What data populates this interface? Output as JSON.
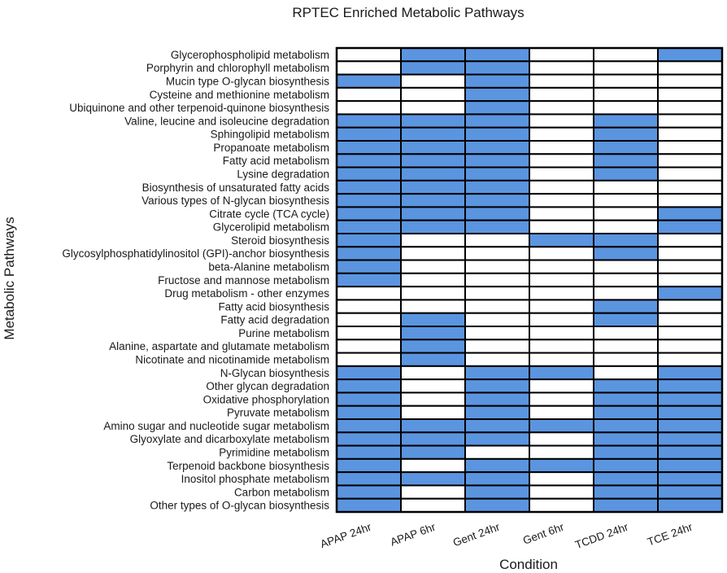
{
  "chart_data": {
    "type": "heatmap",
    "title": "RPTEC Enriched Metabolic Pathways",
    "xlabel": "Condition",
    "ylabel": "Metabolic Pathways",
    "colors": {
      "enriched": "#5b95e0",
      "not_enriched": "#ffffff",
      "border": "#000000"
    },
    "columns": [
      "APAP 24hr",
      "APAP 6hr",
      "Gent 24hr",
      "Gent 6hr",
      "TCDD 24hr",
      "TCE 24hr"
    ],
    "rows": [
      "Glycerophospholipid metabolism",
      "Porphyrin and chlorophyll metabolism",
      "Mucin type O-glycan biosynthesis",
      "Cysteine and methionine metabolism",
      "Ubiquinone and other terpenoid-quinone biosynthesis",
      "Valine, leucine and isoleucine degradation",
      "Sphingolipid metabolism",
      "Propanoate metabolism",
      "Fatty acid metabolism",
      "Lysine degradation",
      "Biosynthesis of unsaturated fatty acids",
      "Various types of N-glycan biosynthesis",
      "Citrate cycle (TCA cycle)",
      "Glycerolipid metabolism",
      "Steroid biosynthesis",
      "Glycosylphosphatidylinositol (GPI)-anchor biosynthesis",
      "beta-Alanine metabolism",
      "Fructose and mannose metabolism",
      "Drug metabolism - other enzymes",
      "Fatty acid biosynthesis",
      "Fatty acid degradation",
      "Purine metabolism",
      "Alanine, aspartate and glutamate metabolism",
      "Nicotinate and nicotinamide metabolism",
      "N-Glycan biosynthesis",
      "Other glycan degradation",
      "Oxidative phosphorylation",
      "Pyruvate metabolism",
      "Amino sugar and nucleotide sugar metabolism",
      "Glyoxylate and dicarboxylate metabolism",
      "Pyrimidine metabolism",
      "Terpenoid backbone biosynthesis",
      "Inositol phosphate metabolism",
      "Carbon metabolism",
      "Other types of O-glycan biosynthesis"
    ],
    "values": [
      [
        0,
        1,
        1,
        0,
        0,
        1
      ],
      [
        0,
        1,
        1,
        0,
        0,
        0
      ],
      [
        1,
        0,
        1,
        0,
        0,
        0
      ],
      [
        0,
        0,
        1,
        0,
        0,
        0
      ],
      [
        0,
        0,
        1,
        0,
        0,
        0
      ],
      [
        1,
        1,
        1,
        0,
        1,
        0
      ],
      [
        1,
        1,
        1,
        0,
        1,
        0
      ],
      [
        1,
        1,
        1,
        0,
        1,
        0
      ],
      [
        1,
        1,
        1,
        0,
        1,
        0
      ],
      [
        1,
        1,
        1,
        0,
        1,
        0
      ],
      [
        1,
        1,
        1,
        0,
        0,
        0
      ],
      [
        1,
        1,
        1,
        0,
        0,
        0
      ],
      [
        1,
        1,
        1,
        0,
        0,
        1
      ],
      [
        1,
        1,
        1,
        0,
        0,
        1
      ],
      [
        1,
        0,
        0,
        1,
        1,
        0
      ],
      [
        1,
        0,
        0,
        0,
        1,
        0
      ],
      [
        1,
        0,
        0,
        0,
        0,
        0
      ],
      [
        1,
        0,
        0,
        0,
        0,
        0
      ],
      [
        0,
        0,
        0,
        0,
        0,
        1
      ],
      [
        0,
        0,
        0,
        0,
        1,
        0
      ],
      [
        0,
        1,
        0,
        0,
        1,
        0
      ],
      [
        0,
        1,
        0,
        0,
        0,
        0
      ],
      [
        0,
        1,
        0,
        0,
        0,
        0
      ],
      [
        0,
        1,
        0,
        0,
        0,
        0
      ],
      [
        1,
        0,
        1,
        1,
        0,
        1
      ],
      [
        1,
        0,
        1,
        0,
        1,
        1
      ],
      [
        1,
        0,
        1,
        0,
        1,
        1
      ],
      [
        1,
        0,
        1,
        0,
        1,
        1
      ],
      [
        1,
        1,
        1,
        1,
        1,
        1
      ],
      [
        1,
        1,
        1,
        0,
        1,
        1
      ],
      [
        1,
        1,
        0,
        0,
        1,
        1
      ],
      [
        1,
        0,
        1,
        1,
        1,
        1
      ],
      [
        1,
        1,
        1,
        0,
        1,
        1
      ],
      [
        1,
        0,
        1,
        0,
        1,
        1
      ],
      [
        1,
        0,
        1,
        0,
        1,
        1
      ]
    ],
    "legend": "none",
    "grid": false
  }
}
